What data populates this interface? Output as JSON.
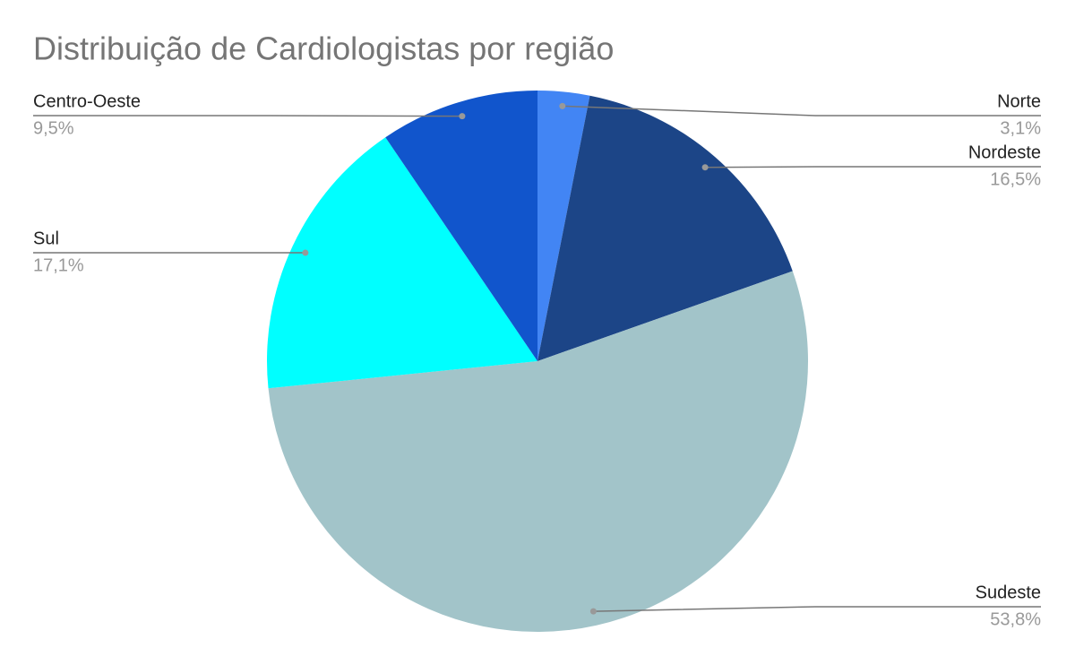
{
  "chart_data": {
    "type": "pie",
    "title": "Distribuição de Cardiologistas por região",
    "categories": [
      "Norte",
      "Nordeste",
      "Sudeste",
      "Sul",
      "Centro-Oeste"
    ],
    "values": [
      3.1,
      16.5,
      53.8,
      17.1,
      9.5
    ],
    "value_labels": [
      "3,1%",
      "16,5%",
      "53,8%",
      "17,1%",
      "9,5%"
    ],
    "colors": [
      "#4285f4",
      "#1c4587",
      "#a2c4c9",
      "#00ffff",
      "#1155cc"
    ]
  }
}
